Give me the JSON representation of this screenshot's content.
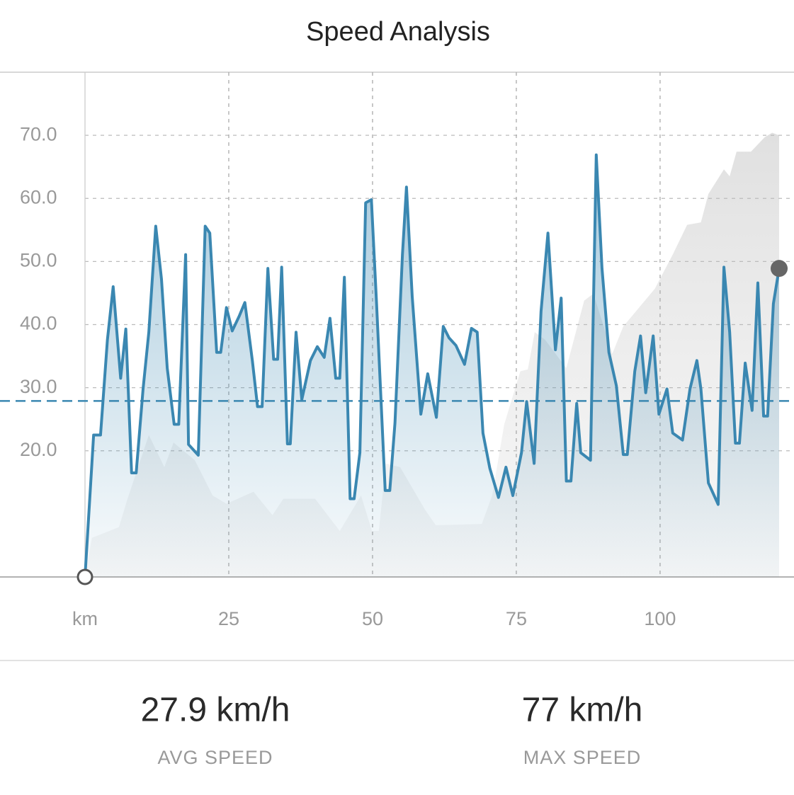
{
  "header": {
    "title": "Speed Analysis"
  },
  "chart_data": {
    "type": "line",
    "x": [
      0,
      1.5,
      2.7,
      3.9,
      4.9,
      6.2,
      7.1,
      8.1,
      8.9,
      10.1,
      11.1,
      12.3,
      13.3,
      14.3,
      15.5,
      16.3,
      17.5,
      18.0,
      19.7,
      20.9,
      21.7,
      22.9,
      23.6,
      24.6,
      25.6,
      26.8,
      27.8,
      29.1,
      30.0,
      30.8,
      31.8,
      32.8,
      33.5,
      34.2,
      35.2,
      35.7,
      36.7,
      37.7,
      39.2,
      40.4,
      41.6,
      42.6,
      43.6,
      44.3,
      45.1,
      46.1,
      46.8,
      47.8,
      48.8,
      49.8,
      50.7,
      52.2,
      53.0,
      53.9,
      55.2,
      55.9,
      56.9,
      58.4,
      59.6,
      61.1,
      62.3,
      63.3,
      64.5,
      66.0,
      67.2,
      68.2,
      69.2,
      70.4,
      71.9,
      73.2,
      74.4,
      75.9,
      76.8,
      78.1,
      79.3,
      80.5,
      81.8,
      82.8,
      83.7,
      84.5,
      85.5,
      86.2,
      87.9,
      88.9,
      89.9,
      91.1,
      92.4,
      93.6,
      94.3,
      95.6,
      96.6,
      97.5,
      98.8,
      99.8,
      101.2,
      102.2,
      103.9,
      105.2,
      106.4,
      107.1,
      108.4,
      110.1,
      111.1,
      112.1,
      113.1,
      113.8,
      114.8,
      116.0,
      117.0,
      118.0,
      118.7,
      119.7,
      120.7
    ],
    "series": [
      {
        "color": "#3a87b1",
        "values": [
          0,
          22.5,
          22.5,
          37.6,
          46,
          31.5,
          39.3,
          16.5,
          16.5,
          29.8,
          38.8,
          55.6,
          47.2,
          33.1,
          24.2,
          24.2,
          51.1,
          21,
          19.3,
          55.6,
          54.5,
          35.6,
          35.6,
          42.7,
          39,
          41.3,
          43.5,
          34.3,
          27,
          27,
          48.9,
          34.5,
          34.5,
          49.1,
          21.1,
          21.1,
          38.8,
          28.1,
          34.3,
          36.5,
          34.8,
          41,
          31.5,
          31.5,
          47.5,
          12.4,
          12.4,
          19.7,
          59.3,
          59.8,
          43.3,
          13.7,
          13.7,
          24.4,
          51.1,
          61.8,
          44.4,
          25.8,
          32.2,
          25.3,
          39.7,
          37.9,
          36.7,
          33.7,
          39.4,
          38.8,
          22.8,
          17.2,
          12.6,
          17.4,
          12.9,
          19.7,
          27.8,
          18,
          42.1,
          54.5,
          36,
          44.2,
          15.2,
          15.2,
          27.5,
          19.7,
          18.5,
          66.9,
          48.9,
          35.6,
          30.3,
          19.4,
          19.4,
          32.6,
          38.2,
          29.2,
          38.2,
          25.8,
          29.8,
          22.8,
          21.7,
          29.8,
          34.3,
          29.8,
          14.9,
          11.5,
          49.1,
          38.8,
          21.2,
          21.2,
          33.9,
          26.4,
          46.6,
          25.5,
          25.5,
          43.3,
          48.9
        ]
      }
    ],
    "background_area": {
      "color": "#e4e4e4",
      "x": [
        0,
        1.2,
        5.9,
        7.4,
        11.1,
        13.8,
        15.4,
        19.1,
        22.2,
        24.6,
        29.3,
        32.6,
        34.5,
        40.0,
        44.3,
        48.0,
        49.9,
        51.1,
        52.3,
        54.8,
        59.1,
        61.0,
        69.0,
        70.8,
        72.9,
        75.7,
        77.0,
        78.2,
        80.0,
        83.7,
        86.8,
        88.4,
        91.7,
        93.6,
        99.1,
        102.2,
        104.7,
        107.1,
        108.4,
        111.1,
        112.1,
        113.3,
        115.8,
        118.2,
        119.5,
        120.7
      ],
      "values": [
        0,
        6.2,
        7.9,
        12.4,
        22.5,
        17.4,
        21.3,
        18.5,
        12.9,
        11.6,
        13.5,
        9.8,
        12.4,
        12.4,
        7.3,
        12.9,
        7.3,
        7.3,
        18,
        17.4,
        10.7,
        8.2,
        8.4,
        12.9,
        24.2,
        32.6,
        32.9,
        38.8,
        37.6,
        33.1,
        43.8,
        44.9,
        35.4,
        39.7,
        45.7,
        51.1,
        55.8,
        56.2,
        60.7,
        64.6,
        63.5,
        67.4,
        67.4,
        69.7,
        70.4,
        70
      ]
    },
    "avg_line": 27.9,
    "xlim": [
      0,
      120.7
    ],
    "ylim": [
      0,
      80
    ],
    "xticks": [
      {
        "value": 0,
        "label": "km"
      },
      25,
      50,
      75,
      100
    ],
    "yticks": [
      {
        "value": 20,
        "label": "20.0"
      },
      {
        "value": 30,
        "label": "30.0"
      },
      {
        "value": 40,
        "label": "40.0"
      },
      {
        "value": 50,
        "label": "50.0"
      },
      {
        "value": 60,
        "label": "60.0"
      },
      {
        "value": 70,
        "label": "70.0"
      }
    ],
    "grid": true
  },
  "stats": [
    {
      "value": "27.9 km/h",
      "label": "AVG SPEED"
    },
    {
      "value": "77 km/h",
      "label": "MAX SPEED"
    }
  ]
}
